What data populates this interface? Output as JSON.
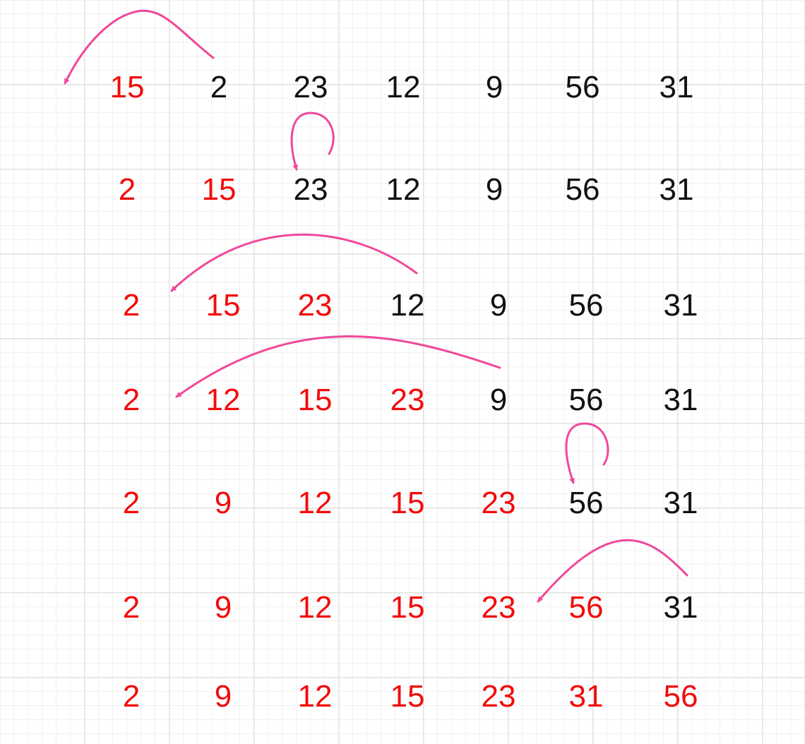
{
  "diagram": {
    "type": "insertion-sort-steps",
    "colors": {
      "sorted": "#f20c0c",
      "unsorted": "#111111",
      "arrow": "#f0489a"
    },
    "rows": [
      {
        "values": [
          "15",
          "2",
          "23",
          "12",
          "9",
          "56",
          "31"
        ],
        "sorted_count": 1
      },
      {
        "values": [
          "2",
          "15",
          "23",
          "12",
          "9",
          "56",
          "31"
        ],
        "sorted_count": 2
      },
      {
        "values": [
          "2",
          "15",
          "23",
          "12",
          "9",
          "56",
          "31"
        ],
        "sorted_count": 3
      },
      {
        "values": [
          "2",
          "12",
          "15",
          "23",
          "9",
          "56",
          "31"
        ],
        "sorted_count": 4
      },
      {
        "values": [
          "2",
          "9",
          "12",
          "15",
          "23",
          "56",
          "31"
        ],
        "sorted_count": 5
      },
      {
        "values": [
          "2",
          "9",
          "12",
          "15",
          "23",
          "56",
          "31"
        ],
        "sorted_count": 6
      },
      {
        "values": [
          "2",
          "9",
          "12",
          "15",
          "23",
          "31",
          "56"
        ],
        "sorted_count": 7
      }
    ],
    "arrows": [
      {
        "row": 0,
        "from_index": 1,
        "to_index": 0,
        "kind": "jump"
      },
      {
        "row": 1,
        "from_index": 2,
        "to_index": 2,
        "kind": "loop"
      },
      {
        "row": 2,
        "from_index": 3,
        "to_index": 1,
        "kind": "jump"
      },
      {
        "row": 3,
        "from_index": 4,
        "to_index": 1,
        "kind": "jump"
      },
      {
        "row": 4,
        "from_index": 5,
        "to_index": 5,
        "kind": "loop"
      },
      {
        "row": 5,
        "from_index": 6,
        "to_index": 5,
        "kind": "jump"
      }
    ]
  }
}
